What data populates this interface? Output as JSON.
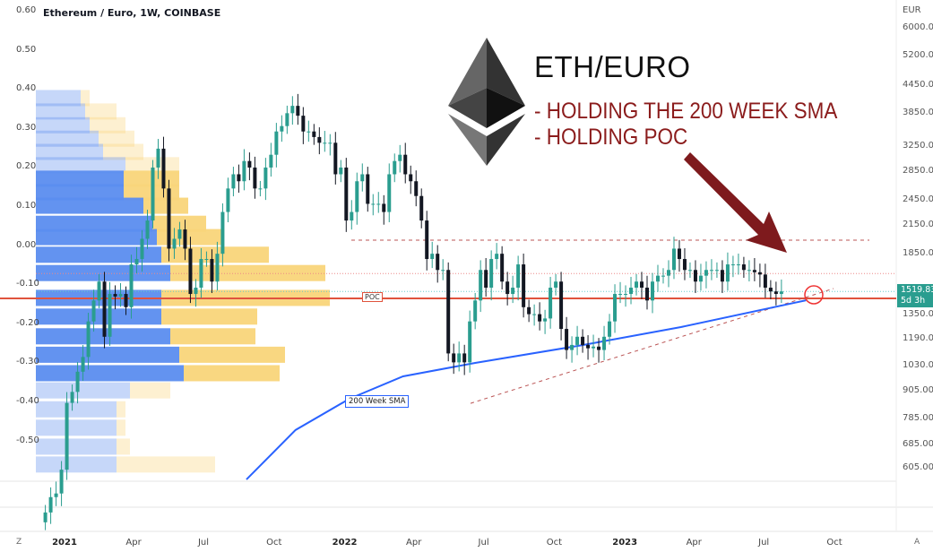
{
  "header": {
    "title": "Ethereum / Euro, 1W, COINBASE",
    "currency": "EUR"
  },
  "annotations": {
    "headline": "ETH/EURO",
    "notes": [
      "- HOLDING THE 200 WEEK SMA",
      "- HOLDING POC"
    ],
    "poc_label": "POC",
    "sma_label": "200 Week SMA",
    "logo": "ethereum-logo"
  },
  "price_tag": {
    "value": "1519.83",
    "countdown": "5d 3h"
  },
  "bottom_buttons": {
    "left": "Z",
    "right": "A"
  },
  "colors": {
    "up": "#2a9d8f",
    "down": "#131722",
    "poc": "#e0533d",
    "sma": "#2962ff",
    "arrow": "#7e1a1d",
    "profile_up": "#5b8def",
    "profile_down": "#f9d57a"
  },
  "chart_data": {
    "type": "candlestick",
    "title": "Ethereum / Euro, 1W, COINBASE",
    "y_scale": "log",
    "ylim": [
      560,
      6100
    ],
    "right_axis_ticks": [
      "6000.00",
      "5200.00",
      "4450.00",
      "3850.00",
      "3250.00",
      "2850.00",
      "2450.00",
      "2150.00",
      "1850.00",
      "1350.00",
      "1190.00",
      "1030.00",
      "905.00",
      "785.00",
      "685.00",
      "605.00"
    ],
    "left_axis_ticks": [
      "0.60",
      "0.50",
      "0.40",
      "0.30",
      "0.20",
      "0.10",
      "0.00",
      "-0.10",
      "-0.20",
      "-0.30",
      "-0.40",
      "-0.50"
    ],
    "x_ticks": [
      {
        "label": "2021",
        "date": "2021-01-01",
        "year": true
      },
      {
        "label": "Apr",
        "date": "2021-04-01"
      },
      {
        "label": "Jul",
        "date": "2021-07-01"
      },
      {
        "label": "Oct",
        "date": "2021-10-01"
      },
      {
        "label": "2022",
        "date": "2022-01-01",
        "year": true
      },
      {
        "label": "Apr",
        "date": "2022-04-01"
      },
      {
        "label": "Jul",
        "date": "2022-07-01"
      },
      {
        "label": "Oct",
        "date": "2022-10-01"
      },
      {
        "label": "2023",
        "date": "2023-01-01",
        "year": true
      },
      {
        "label": "Apr",
        "date": "2023-04-01"
      },
      {
        "label": "Jul",
        "date": "2023-07-01"
      },
      {
        "label": "Oct",
        "date": "2023-10-01"
      }
    ],
    "first_week": "2020-12-07",
    "weekly_close": [
      480,
      520,
      530,
      600,
      850,
      900,
      1000,
      1080,
      1300,
      1450,
      1600,
      1200,
      1500,
      1480,
      1500,
      1400,
      1750,
      1800,
      2000,
      2200,
      2900,
      3200,
      2600,
      1900,
      2000,
      2100,
      1900,
      1500,
      1550,
      1800,
      1800,
      1600,
      1850,
      2300,
      2600,
      2800,
      2700,
      3000,
      2900,
      2600,
      2600,
      2900,
      3100,
      3500,
      3600,
      3850,
      4000,
      3800,
      3500,
      3500,
      3400,
      3300,
      3300,
      3300,
      2800,
      2900,
      2200,
      2300,
      2700,
      2800,
      2400,
      2400,
      2400,
      2300,
      2800,
      3000,
      3100,
      2800,
      2700,
      2500,
      2200,
      1800,
      1850,
      1700,
      1700,
      1100,
      1050,
      1100,
      1050,
      1300,
      1450,
      1700,
      1550,
      1800,
      1850,
      1600,
      1500,
      1550,
      1750,
      1400,
      1350,
      1350,
      1300,
      1320,
      1550,
      1600,
      1250,
      1120,
      1150,
      1200,
      1150,
      1130,
      1140,
      1120,
      1200,
      1300,
      1500,
      1500,
      1500,
      1550,
      1600,
      1550,
      1450,
      1600,
      1650,
      1650,
      1700,
      1900,
      1800,
      1700,
      1700,
      1600,
      1650,
      1700,
      1700,
      1700,
      1600,
      1750,
      1750,
      1750,
      1700,
      1700,
      1680,
      1660,
      1550,
      1520,
      1500,
      1520
    ],
    "sma_200w": [
      {
        "date": "2021-08-26",
        "value": 570
      },
      {
        "date": "2021-10-29",
        "value": 738
      },
      {
        "date": "2022-01-07",
        "value": 868
      },
      {
        "date": "2022-03-18",
        "value": 976
      },
      {
        "date": "2022-06-20",
        "value": 1047
      },
      {
        "date": "2022-11-07",
        "value": 1149
      },
      {
        "date": "2023-03-15",
        "value": 1262
      },
      {
        "date": "2023-08-25",
        "value": 1451
      }
    ],
    "poc": 1466,
    "value_area_high": 1669,
    "resistance": 1986,
    "support_trendline": [
      {
        "date": "2022-06-14",
        "value": 848
      },
      {
        "date": "2023-09-30",
        "value": 1543
      }
    ],
    "last_price": 1519.83,
    "volume_profile": [
      {
        "price": 4156,
        "up": 50,
        "down": 10,
        "value_area": false
      },
      {
        "price": 3875,
        "up": 55,
        "down": 35,
        "value_area": false
      },
      {
        "price": 3607,
        "up": 60,
        "down": 40,
        "value_area": false
      },
      {
        "price": 3363,
        "up": 70,
        "down": 40,
        "value_area": false
      },
      {
        "price": 3139,
        "up": 75,
        "down": 45,
        "value_area": false
      },
      {
        "price": 2929,
        "up": 100,
        "down": 60,
        "value_area": false
      },
      {
        "price": 2730,
        "up": 98,
        "down": 62,
        "value_area": true
      },
      {
        "price": 2544,
        "up": 98,
        "down": 62,
        "value_area": true
      },
      {
        "price": 2371,
        "up": 120,
        "down": 50,
        "value_area": true
      },
      {
        "price": 2158,
        "up": 130,
        "down": 60,
        "value_area": true
      },
      {
        "price": 2013,
        "up": 135,
        "down": 75,
        "value_area": true
      },
      {
        "price": 1836,
        "up": 140,
        "down": 120,
        "value_area": true
      },
      {
        "price": 1669,
        "up": 150,
        "down": 173,
        "value_area": true
      },
      {
        "price": 1466,
        "up": 140,
        "down": 188,
        "value_area": true
      },
      {
        "price": 1330,
        "up": 140,
        "down": 107,
        "value_area": true
      },
      {
        "price": 1200,
        "up": 150,
        "down": 95,
        "value_area": true
      },
      {
        "price": 1090,
        "up": 160,
        "down": 118,
        "value_area": true
      },
      {
        "price": 990,
        "up": 165,
        "down": 107,
        "value_area": true
      },
      {
        "price": 905,
        "up": 105,
        "down": 45,
        "value_area": false
      },
      {
        "price": 820,
        "up": 90,
        "down": 10,
        "value_area": false
      },
      {
        "price": 745,
        "up": 90,
        "down": 10,
        "value_area": false
      },
      {
        "price": 675,
        "up": 90,
        "down": 15,
        "value_area": false
      },
      {
        "price": 615,
        "up": 90,
        "down": 110,
        "value_area": false
      }
    ]
  }
}
